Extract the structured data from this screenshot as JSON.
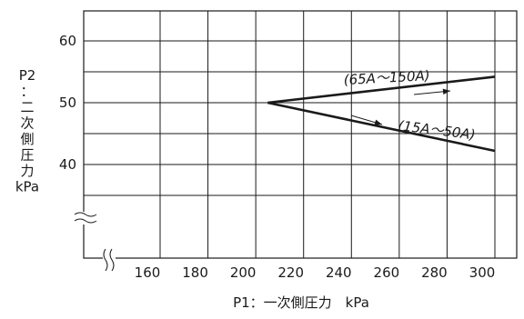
{
  "chart_data": {
    "type": "line",
    "xlabel": "P1：一次側圧力　kPa",
    "ylabel": [
      "P2",
      "：",
      "二",
      "次",
      "側",
      "圧",
      "力",
      "kPa"
    ],
    "x_ticks": [
      160,
      180,
      200,
      220,
      240,
      260,
      280,
      300
    ],
    "y_ticks": [
      40,
      50,
      60
    ],
    "xlim": [
      140,
      300
    ],
    "ylim": [
      30,
      65
    ],
    "axis_breaks": [
      "x",
      "y"
    ],
    "grid": true,
    "series": [
      {
        "name": "(65A〜150A)",
        "x": [
          205,
          300
        ],
        "y": [
          50,
          54.2
        ]
      },
      {
        "name": "(15A〜50A)",
        "x": [
          205,
          300
        ],
        "y": [
          50,
          42.2
        ]
      }
    ]
  }
}
